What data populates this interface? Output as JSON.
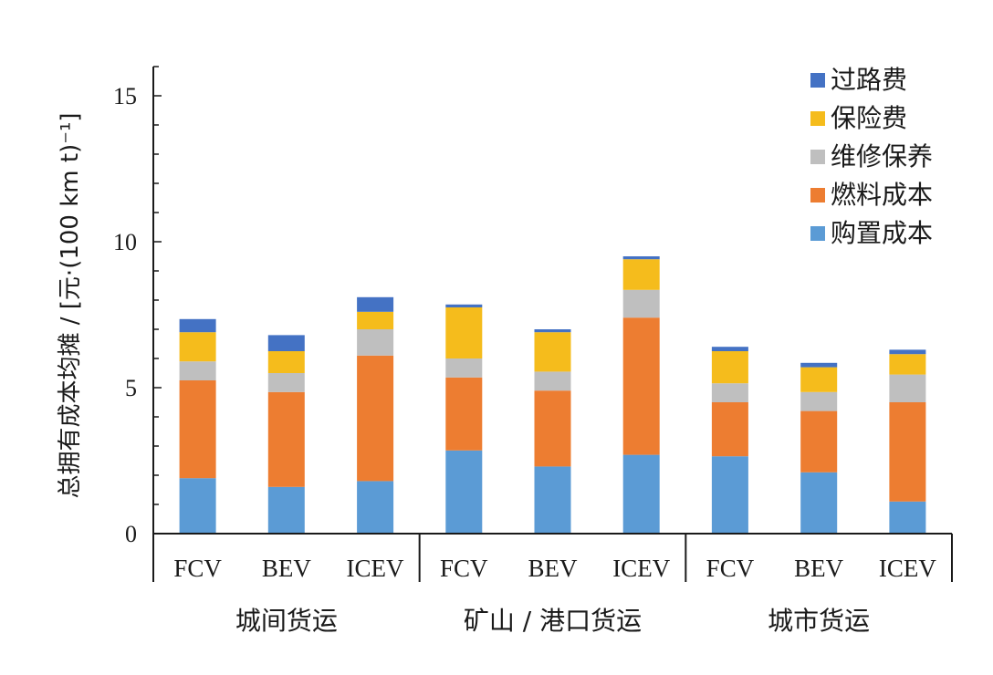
{
  "chart_data": {
    "type": "bar",
    "stacked": true,
    "title": "",
    "ylabel": "总拥有成本均摊 / [元·(100 km t)⁻¹]",
    "ylim": [
      0,
      16
    ],
    "yticks": [
      0,
      5,
      10,
      15
    ],
    "categories": [
      "FCV",
      "BEV",
      "ICEV",
      "FCV",
      "BEV",
      "ICEV",
      "FCV",
      "BEV",
      "ICEV"
    ],
    "groups": [
      "城间货运",
      "矿山 / 港口货运",
      "城市货运"
    ],
    "legend_position": "top-right",
    "series": [
      {
        "name": "购置成本",
        "color": "#5b9bd5",
        "values": [
          1.9,
          1.6,
          1.8,
          2.85,
          2.3,
          2.7,
          2.65,
          2.1,
          1.1
        ]
      },
      {
        "name": "燃料成本",
        "color": "#ed7d31",
        "values": [
          3.35,
          3.25,
          4.3,
          2.5,
          2.6,
          4.7,
          1.85,
          2.1,
          3.4
        ]
      },
      {
        "name": "维修保养",
        "color": "#bfbfbf",
        "values": [
          0.65,
          0.65,
          0.9,
          0.65,
          0.65,
          0.95,
          0.65,
          0.65,
          0.95
        ]
      },
      {
        "name": "保险费",
        "color": "#f5bc1c",
        "values": [
          1.0,
          0.75,
          0.6,
          1.75,
          1.35,
          1.05,
          1.1,
          0.85,
          0.7
        ]
      },
      {
        "name": "过路费",
        "color": "#4472c4",
        "values": [
          0.45,
          0.55,
          0.5,
          0.1,
          0.1,
          0.1,
          0.15,
          0.15,
          0.15
        ]
      }
    ],
    "legend_order": [
      "过路费",
      "保险费",
      "维修保养",
      "燃料成本",
      "购置成本"
    ]
  }
}
